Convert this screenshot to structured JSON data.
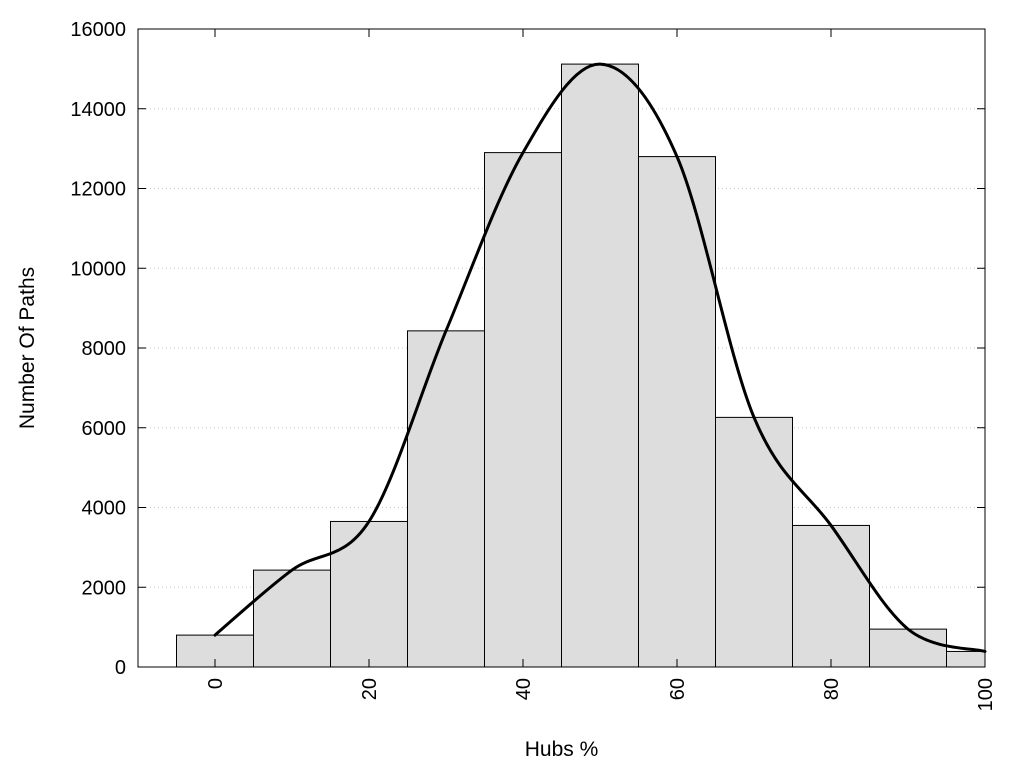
{
  "chart_data": {
    "type": "bar",
    "title": "",
    "xlabel": "Hubs %",
    "ylabel": "Number Of Paths",
    "xlim": [
      -10,
      100
    ],
    "ylim": [
      0,
      16000
    ],
    "x_ticks": [
      0,
      20,
      40,
      60,
      80,
      100
    ],
    "y_ticks": [
      0,
      2000,
      4000,
      6000,
      8000,
      10000,
      12000,
      14000,
      16000
    ],
    "grid": "horizontal dotted",
    "bar_width": 10,
    "bar_color": "#dddddd",
    "bars": [
      {
        "x": 0,
        "value": 800
      },
      {
        "x": 10,
        "value": 2430
      },
      {
        "x": 20,
        "value": 3650
      },
      {
        "x": 30,
        "value": 8430
      },
      {
        "x": 40,
        "value": 12900
      },
      {
        "x": 50,
        "value": 15120
      },
      {
        "x": 60,
        "value": 12800
      },
      {
        "x": 70,
        "value": 6260
      },
      {
        "x": 80,
        "value": 3550
      },
      {
        "x": 90,
        "value": 950
      },
      {
        "x": 100,
        "value": 390
      }
    ],
    "curve": {
      "type": "line",
      "smooth": true,
      "color": "#000000",
      "points": [
        [
          0,
          800
        ],
        [
          10,
          2430
        ],
        [
          20,
          3650
        ],
        [
          30,
          8430
        ],
        [
          40,
          12900
        ],
        [
          50,
          15120
        ],
        [
          60,
          12800
        ],
        [
          70,
          6260
        ],
        [
          80,
          3550
        ],
        [
          90,
          950
        ],
        [
          100,
          390
        ]
      ]
    }
  }
}
